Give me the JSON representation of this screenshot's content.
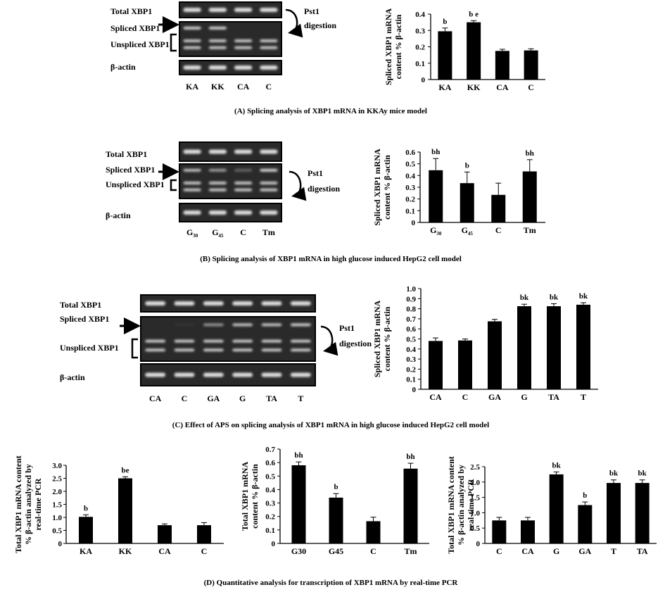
{
  "captions": {
    "A": "(A) Splicing analysis of XBP1 mRNA in KKAy mice model",
    "B": "(B) Splicing analysis of XBP1 mRNA in high glucose induced HepG2 cell model",
    "C": "(C) Effect of APS on splicing analysis of XBP1 mRNA in high glucose induced HepG2 cell model",
    "D": "(D) Quantitative analysis for transcription of XBP1  mRNA by real-time PCR"
  },
  "gels": [
    {
      "id": "A",
      "labels": {
        "total": "Total XBP1",
        "spliced": "Spliced XBP1",
        "unspliced": "Unspliced XBP1",
        "actin": "β-actin",
        "digestion_1": "Pst1",
        "digestion_2": "digestion"
      },
      "lanes": [
        {
          "t": "KA"
        },
        {
          "t": "KK"
        },
        {
          "t": "CA"
        },
        {
          "t": "C"
        }
      ]
    },
    {
      "id": "B",
      "labels": {
        "total": "Total XBP1",
        "spliced": "Spliced XBP1",
        "unspliced": "Unspliced XBP1",
        "actin": "β-actin",
        "digestion_1": "Pst1",
        "digestion_2": "digestion"
      },
      "lanes": [
        {
          "t": "G",
          "sub": "30"
        },
        {
          "t": "G",
          "sub": "45"
        },
        {
          "t": "C"
        },
        {
          "t": "Tm"
        }
      ]
    },
    {
      "id": "C",
      "labels": {
        "total": "Total XBP1",
        "spliced": "Spliced XBP1",
        "unspliced": "Unspliced XBP1",
        "actin": "β-actin",
        "digestion_1": "Pst1",
        "digestion_2": "digestion"
      },
      "lanes": [
        {
          "t": "CA"
        },
        {
          "t": "C"
        },
        {
          "t": "GA"
        },
        {
          "t": "G"
        },
        {
          "t": "TA"
        },
        {
          "t": "T"
        }
      ]
    }
  ],
  "chart_data": [
    {
      "id": "A-chart",
      "type": "bar",
      "ylabel_lines": [
        "Spliced XBP1 mRNA",
        "content % β-actin"
      ],
      "categories": [
        {
          "t": "KA"
        },
        {
          "t": "KK"
        },
        {
          "t": "CA"
        },
        {
          "t": "C"
        }
      ],
      "values": [
        0.295,
        0.35,
        0.175,
        0.178
      ],
      "errors": [
        0.02,
        0.01,
        0.01,
        0.01
      ],
      "annotations": [
        "b",
        "b e",
        "",
        ""
      ],
      "ylim": [
        0,
        0.4
      ],
      "ticks": [
        "0",
        "0.1",
        "0.2",
        "0.3",
        "0.4"
      ]
    },
    {
      "id": "B-chart",
      "type": "bar",
      "ylabel_lines": [
        "Spliced XBP1 mRNA",
        "content % β-actin"
      ],
      "categories": [
        {
          "t": "G",
          "sub": "30"
        },
        {
          "t": "G",
          "sub": "45"
        },
        {
          "t": "C"
        },
        {
          "t": "Tm"
        }
      ],
      "values": [
        0.445,
        0.335,
        0.235,
        0.435
      ],
      "errors": [
        0.1,
        0.095,
        0.1,
        0.1
      ],
      "annotations": [
        "bh",
        "b",
        "",
        "bh"
      ],
      "ylim": [
        0,
        0.6
      ],
      "ticks": [
        "0",
        "0.1",
        "0.2",
        "0.3",
        "0.4",
        "0.5",
        "0.6"
      ]
    },
    {
      "id": "C-chart",
      "type": "bar",
      "ylabel_lines": [
        "Spliced XBP1 mRNA",
        "content % β-actin"
      ],
      "categories": [
        {
          "t": "CA"
        },
        {
          "t": "C"
        },
        {
          "t": "GA"
        },
        {
          "t": "G"
        },
        {
          "t": "TA"
        },
        {
          "t": "T"
        }
      ],
      "values": [
        0.48,
        0.485,
        0.675,
        0.825,
        0.825,
        0.84
      ],
      "errors": [
        0.03,
        0.015,
        0.02,
        0.02,
        0.025,
        0.02
      ],
      "annotations": [
        "",
        "",
        "",
        "bk",
        "bk",
        "bk"
      ],
      "ylim": [
        0,
        1.0
      ],
      "ticks": [
        "0",
        "0.1",
        "0.2",
        "0.3",
        "0.4",
        "0.5",
        "0.6",
        "0.7",
        "0.8",
        "0.9",
        "1.0"
      ]
    },
    {
      "id": "D1-chart",
      "type": "bar",
      "ylabel_lines": [
        "Total XBP1 mRNA content",
        "% β-actin analyzed by",
        "real-time PCR"
      ],
      "categories": [
        {
          "t": "KA"
        },
        {
          "t": "KK"
        },
        {
          "t": "CA"
        },
        {
          "t": "C"
        }
      ],
      "values": [
        1.02,
        2.5,
        0.7,
        0.7
      ],
      "errors": [
        0.08,
        0.06,
        0.05,
        0.1
      ],
      "annotations": [
        "b",
        "be",
        "",
        ""
      ],
      "ylim": [
        0,
        3.0
      ],
      "ticks": [
        "0",
        "0.5",
        "1.0",
        "1.5",
        "2.0",
        "2.5",
        "3.0"
      ]
    },
    {
      "id": "D2-chart",
      "type": "bar",
      "ylabel_lines": [
        "Total XBP1 mRNA",
        "content % β-actin"
      ],
      "categories": [
        {
          "t": "G30"
        },
        {
          "t": "G45"
        },
        {
          "t": "C"
        },
        {
          "t": "Tm"
        }
      ],
      "values": [
        0.58,
        0.34,
        0.165,
        0.555
      ],
      "errors": [
        0.025,
        0.03,
        0.03,
        0.04
      ],
      "annotations": [
        "bh",
        "b",
        "",
        "bh"
      ],
      "ylim": [
        0,
        0.7
      ],
      "ticks": [
        "0",
        "0.1",
        "0.2",
        "0.3",
        "0.4",
        "0.5",
        "0.6",
        "0.7"
      ]
    },
    {
      "id": "D3-chart",
      "type": "bar",
      "ylabel_lines": [
        "Total XBP1 mRNA content",
        "% β-actin analyzed by",
        "real-time PCR"
      ],
      "categories": [
        {
          "t": "C"
        },
        {
          "t": "CA"
        },
        {
          "t": "G"
        },
        {
          "t": "GA"
        },
        {
          "t": "T"
        },
        {
          "t": "TA"
        }
      ],
      "values": [
        0.75,
        0.75,
        2.25,
        1.25,
        1.97,
        1.97
      ],
      "errors": [
        0.1,
        0.1,
        0.08,
        0.1,
        0.1,
        0.1
      ],
      "annotations": [
        "",
        "",
        "bk",
        "b",
        "bk",
        "bk"
      ],
      "ylim": [
        0,
        2.5
      ],
      "ticks": [
        "0",
        "0.5",
        "1.0",
        "1.5",
        "2.0",
        "2.5"
      ]
    }
  ]
}
